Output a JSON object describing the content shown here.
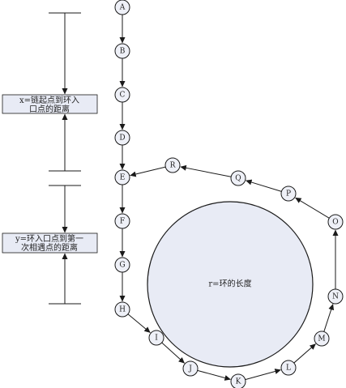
{
  "diagram": {
    "chain_nodes": [
      "A",
      "B",
      "C",
      "D",
      "E",
      "F",
      "G",
      "H"
    ],
    "loop_nodes": [
      "I",
      "J",
      "K",
      "L",
      "M",
      "N",
      "O",
      "P",
      "Q",
      "R"
    ],
    "ring_label": "r=环的长度",
    "x_box": {
      "line1": "x=链起点到环入",
      "line2": "口点的距离"
    },
    "y_box": {
      "line1": "y=环入口点到第一",
      "line2": "次相遇点的距离"
    }
  }
}
